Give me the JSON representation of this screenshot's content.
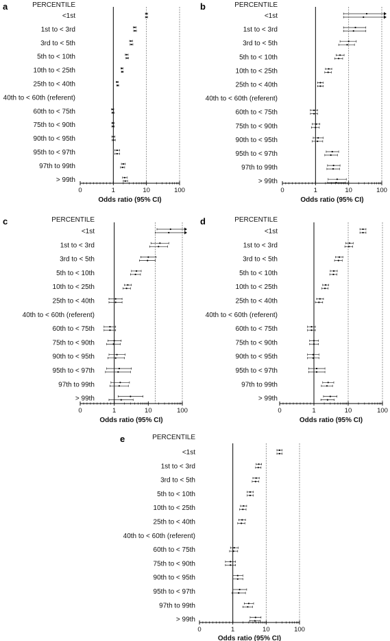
{
  "row_header": "PERCENTILE",
  "categories": [
    "<1st",
    "1st to < 3rd",
    "3rd to < 5th",
    "5th to < 10th",
    "10th to < 25th",
    "25th to < 40th",
    "40th to < 60th (referent)",
    "60th to < 75th",
    "75th to < 90th",
    "90th to < 95th",
    "95th to < 97th",
    "97th to 99th",
    "> 99th"
  ],
  "chart_data": [
    {
      "panel": "a",
      "type": "scatter",
      "xscale": "log",
      "xlim": [
        0,
        100
      ],
      "xticks": [
        0,
        1,
        10,
        100
      ],
      "xticklabels": [
        "0",
        "1",
        "10",
        "100"
      ],
      "xlabel": "Odds ratio (95% CI)",
      "reference_lines": [
        1,
        10,
        100
      ],
      "estimates": [
        [
          [
            10,
            9.3,
            10.8
          ],
          [
            10,
            9.3,
            10.8
          ]
        ],
        [
          [
            4.4,
            4.0,
            4.9
          ],
          [
            4.5,
            4.1,
            5.0
          ]
        ],
        [
          [
            3.4,
            3.1,
            3.8
          ],
          [
            3.5,
            3.2,
            3.9
          ]
        ],
        [
          [
            2.5,
            2.3,
            2.8
          ],
          [
            2.6,
            2.4,
            2.9
          ]
        ],
        [
          [
            1.8,
            1.7,
            1.95
          ],
          [
            1.85,
            1.75,
            2.0
          ]
        ],
        [
          [
            1.3,
            1.22,
            1.4
          ],
          [
            1.35,
            1.27,
            1.45
          ]
        ],
        [
          [
            1,
            1,
            1
          ],
          [
            1,
            1,
            1
          ]
        ],
        [
          [
            0.95,
            0.88,
            1.03
          ],
          [
            0.97,
            0.9,
            1.05
          ]
        ],
        [
          [
            0.97,
            0.9,
            1.05
          ],
          [
            0.98,
            0.9,
            1.07
          ]
        ],
        [
          [
            1.0,
            0.9,
            1.12
          ],
          [
            1.02,
            0.92,
            1.15
          ]
        ],
        [
          [
            1.3,
            1.1,
            1.55
          ],
          [
            1.3,
            1.1,
            1.55
          ]
        ],
        [
          [
            2.0,
            1.75,
            2.3
          ],
          [
            1.9,
            1.65,
            2.2
          ]
        ],
        [
          [
            2.2,
            1.9,
            2.6
          ],
          [
            2.3,
            2.0,
            2.7
          ]
        ]
      ]
    },
    {
      "panel": "b",
      "type": "scatter",
      "xscale": "log",
      "xlim": [
        0,
        100
      ],
      "xticks": [
        0,
        1,
        10,
        100
      ],
      "xticklabels": [
        "0",
        "1",
        "10",
        "100"
      ],
      "xlabel": "Odds ratio (95% CI)",
      "reference_lines": [
        1,
        10,
        100
      ],
      "estimates": [
        [
          [
            35,
            7,
            170
          ],
          [
            28,
            7,
            170
          ]
        ],
        [
          [
            16,
            7,
            33
          ],
          [
            14,
            7,
            33
          ]
        ],
        [
          [
            10,
            5.5,
            17
          ],
          [
            9,
            5,
            15
          ]
        ],
        [
          [
            5.5,
            4.2,
            7.3
          ],
          [
            5.0,
            3.8,
            6.6
          ]
        ],
        [
          [
            2.5,
            2.0,
            3.1
          ],
          [
            2.4,
            1.9,
            3.0
          ]
        ],
        [
          [
            1.4,
            1.15,
            1.7
          ],
          [
            1.4,
            1.15,
            1.7
          ]
        ],
        [
          [
            1,
            1,
            1
          ],
          [
            1,
            1,
            1
          ]
        ],
        [
          [
            0.9,
            0.7,
            1.15
          ],
          [
            0.9,
            0.7,
            1.15
          ]
        ],
        [
          [
            1.05,
            0.8,
            1.35
          ],
          [
            1.0,
            0.75,
            1.3
          ]
        ],
        [
          [
            1.2,
            0.85,
            1.7
          ],
          [
            1.15,
            0.8,
            1.65
          ]
        ],
        [
          [
            3.2,
            2.1,
            5.0
          ],
          [
            2.9,
            1.9,
            4.6
          ]
        ],
        [
          [
            3.5,
            2.3,
            5.5
          ],
          [
            3.4,
            2.2,
            5.3
          ]
        ],
        [
          [
            4.5,
            2.4,
            8.5
          ],
          [
            4.2,
            2.3,
            8.0
          ]
        ]
      ]
    },
    {
      "panel": "c",
      "type": "scatter",
      "xscale": "log",
      "xlim": [
        0,
        100
      ],
      "xticks": [
        0,
        1,
        10,
        100
      ],
      "xticklabels": [
        "0",
        "1",
        "10",
        "100"
      ],
      "xlabel": "Odds ratio (95% CI)",
      "reference_lines": [
        1,
        16,
        100
      ],
      "estimates": [
        [
          [
            45,
            18,
            130
          ],
          [
            40,
            16,
            130
          ]
        ],
        [
          [
            22,
            12,
            40
          ],
          [
            20,
            11,
            37
          ]
        ],
        [
          [
            10,
            6,
            17
          ],
          [
            9.5,
            5.5,
            16
          ]
        ],
        [
          [
            4.5,
            3.2,
            6.2
          ],
          [
            4.2,
            3.0,
            5.9
          ]
        ],
        [
          [
            2.5,
            2.0,
            3.2
          ],
          [
            2.3,
            1.8,
            3.0
          ]
        ],
        [
          [
            1.1,
            0.7,
            1.7
          ],
          [
            1.1,
            0.7,
            1.7
          ]
        ],
        [
          [
            1,
            1,
            1
          ],
          [
            1,
            1,
            1
          ]
        ],
        [
          [
            0.75,
            0.5,
            1.1
          ],
          [
            0.75,
            0.5,
            1.1
          ]
        ],
        [
          [
            1.0,
            0.65,
            1.6
          ],
          [
            0.95,
            0.6,
            1.5
          ]
        ],
        [
          [
            1.2,
            0.7,
            2.1
          ],
          [
            1.1,
            0.65,
            2.0
          ]
        ],
        [
          [
            1.4,
            0.6,
            3.2
          ],
          [
            1.3,
            0.55,
            3.0
          ]
        ],
        [
          [
            1.5,
            0.8,
            2.8
          ],
          [
            1.4,
            0.75,
            2.6
          ]
        ],
        [
          [
            3.0,
            1.3,
            7.0
          ],
          [
            1.6,
            0.7,
            3.6
          ]
        ]
      ]
    },
    {
      "panel": "d",
      "type": "scatter",
      "xscale": "log",
      "xlim": [
        0,
        100
      ],
      "xticks": [
        0,
        1,
        10,
        100
      ],
      "xticklabels": [
        "0",
        "1",
        "10",
        "100"
      ],
      "xlabel": "Odds ratio (95% CI)",
      "reference_lines": [
        1,
        10,
        100
      ],
      "estimates": [
        [
          [
            27,
            22,
            33
          ],
          [
            27,
            22,
            33
          ]
        ],
        [
          [
            11,
            8.5,
            14
          ],
          [
            10.5,
            8,
            13.5
          ]
        ],
        [
          [
            5.5,
            4.3,
            7.0
          ],
          [
            5.2,
            4.0,
            6.7
          ]
        ],
        [
          [
            3.8,
            3.0,
            4.8
          ],
          [
            3.7,
            2.9,
            4.7
          ]
        ],
        [
          [
            2.2,
            1.8,
            2.7
          ],
          [
            2.1,
            1.7,
            2.6
          ]
        ],
        [
          [
            1.5,
            1.2,
            1.9
          ],
          [
            1.4,
            1.1,
            1.8
          ]
        ],
        [
          [
            1,
            1,
            1
          ],
          [
            1,
            1,
            1
          ]
        ],
        [
          [
            0.85,
            0.65,
            1.1
          ],
          [
            0.85,
            0.65,
            1.1
          ]
        ],
        [
          [
            1.0,
            0.75,
            1.35
          ],
          [
            1.0,
            0.75,
            1.35
          ]
        ],
        [
          [
            0.95,
            0.65,
            1.4
          ],
          [
            0.95,
            0.65,
            1.4
          ]
        ],
        [
          [
            1.2,
            0.7,
            2.1
          ],
          [
            1.2,
            0.7,
            2.1
          ]
        ],
        [
          [
            2.6,
            1.8,
            3.8
          ],
          [
            2.4,
            1.65,
            3.5
          ]
        ],
        [
          [
            3.0,
            1.9,
            4.7
          ],
          [
            2.5,
            1.6,
            3.9
          ]
        ]
      ]
    },
    {
      "panel": "e",
      "type": "scatter",
      "xscale": "log",
      "xlim": [
        0,
        100
      ],
      "xticks": [
        0,
        1,
        10,
        100
      ],
      "xticklabels": [
        "0",
        "1",
        "10",
        "100"
      ],
      "xlabel": "Odds ratio (95% CI)",
      "reference_lines": [
        1,
        10,
        100
      ],
      "estimates": [
        [
          [
            25,
            21,
            30
          ],
          [
            25,
            21,
            30
          ]
        ],
        [
          [
            6.0,
            5.0,
            7.3
          ],
          [
            5.8,
            4.8,
            7.0
          ]
        ],
        [
          [
            5.0,
            4.0,
            6.2
          ],
          [
            4.8,
            3.8,
            6.0
          ]
        ],
        [
          [
            3.3,
            2.7,
            4.1
          ],
          [
            3.3,
            2.7,
            4.1
          ]
        ],
        [
          [
            2.1,
            1.7,
            2.6
          ],
          [
            2.0,
            1.6,
            2.5
          ]
        ],
        [
          [
            1.9,
            1.5,
            2.4
          ],
          [
            1.8,
            1.4,
            2.3
          ]
        ],
        [
          [
            1,
            1,
            1
          ],
          [
            1,
            1,
            1
          ]
        ],
        [
          [
            1.1,
            0.85,
            1.45
          ],
          [
            1.05,
            0.8,
            1.4
          ]
        ],
        [
          [
            0.85,
            0.6,
            1.2
          ],
          [
            0.85,
            0.6,
            1.2
          ]
        ],
        [
          [
            1.4,
            1.0,
            2.0
          ],
          [
            1.4,
            1.0,
            2.0
          ]
        ],
        [
          [
            1.6,
            1.0,
            2.6
          ],
          [
            1.5,
            0.95,
            2.4
          ]
        ],
        [
          [
            3.0,
            2.2,
            4.2
          ],
          [
            2.8,
            2.0,
            3.9
          ]
        ],
        [
          [
            4.8,
            3.3,
            7.0
          ],
          [
            4.6,
            3.2,
            6.7
          ]
        ]
      ]
    }
  ]
}
